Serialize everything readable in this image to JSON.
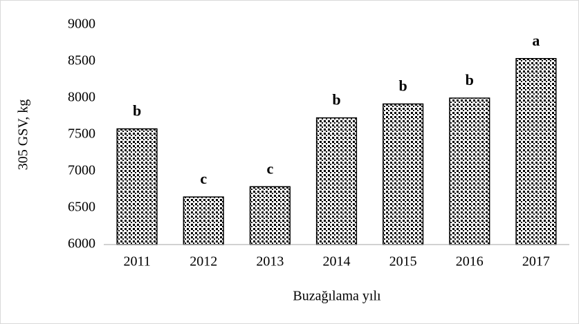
{
  "chart_data": {
    "type": "bar",
    "y_label": "305 GSV, kg",
    "x_label": "Buzağılama yılı",
    "categories": [
      "2011",
      "2012",
      "2013",
      "2014",
      "2015",
      "2016",
      "2017"
    ],
    "values": [
      7580,
      6650,
      6790,
      7730,
      7920,
      8000,
      8540
    ],
    "annotations": [
      "b",
      "c",
      "c",
      "b",
      "b",
      "b",
      "a"
    ],
    "color": "#000000",
    "ylim": [
      6000,
      9000
    ],
    "yticks": [
      6000,
      6500,
      7000,
      7500,
      8000,
      8500,
      9000
    ],
    "grid": false
  }
}
